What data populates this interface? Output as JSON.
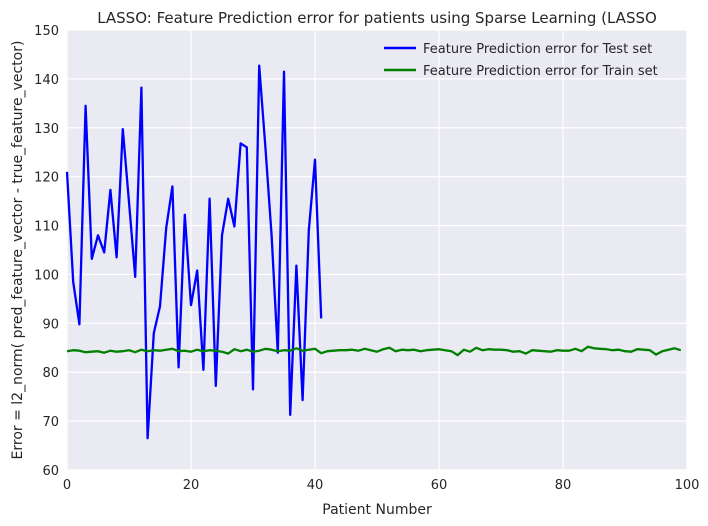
{
  "chart_data": {
    "type": "line",
    "title": "LASSO: Feature Prediction error for patients using Sparse Learning (LASSO",
    "xlabel": "Patient Number",
    "ylabel": "Error = l2_norm( pred_feature_vector - true_feature_vector)",
    "xlim": [
      0,
      100
    ],
    "ylim": [
      60,
      150
    ],
    "xticks": [
      0,
      20,
      40,
      60,
      80,
      100
    ],
    "yticks": [
      60,
      70,
      80,
      90,
      100,
      110,
      120,
      130,
      140,
      150
    ],
    "xtick_labels": [
      "0",
      "20",
      "40",
      "60",
      "80",
      "100"
    ],
    "ytick_labels": [
      "60",
      "70",
      "80",
      "90",
      "100",
      "110",
      "120",
      "130",
      "140",
      "150"
    ],
    "grid": true,
    "legend_position": "top-right",
    "series": [
      {
        "name": "Feature Prediction error for Test set",
        "color": "#0000ff",
        "x": [
          0,
          1,
          2,
          3,
          4,
          5,
          6,
          7,
          8,
          9,
          10,
          11,
          12,
          13,
          14,
          15,
          16,
          17,
          18,
          19,
          20,
          21,
          22,
          23,
          24,
          25,
          26,
          27,
          28,
          29,
          30,
          31,
          32,
          33,
          34,
          35,
          36,
          37,
          38,
          39,
          40,
          41
        ],
        "y": [
          121,
          98.5,
          89.8,
          134.5,
          103.2,
          108,
          104.5,
          117.3,
          103.5,
          129.7,
          114.8,
          99.5,
          138.2,
          66.5,
          88,
          93.5,
          109.5,
          118,
          81,
          112.2,
          93.7,
          100.8,
          80.5,
          115.5,
          77.2,
          108,
          115.5,
          109.8,
          126.8,
          126,
          76.5,
          142.7,
          126,
          108,
          84,
          141.5,
          71.3,
          101.8,
          74.3,
          109,
          123.5,
          91
        ]
      },
      {
        "name": "Feature Prediction error for Train set",
        "color": "#008000",
        "x": [
          0,
          1,
          2,
          3,
          4,
          5,
          6,
          7,
          8,
          9,
          10,
          11,
          12,
          13,
          14,
          15,
          16,
          17,
          18,
          19,
          20,
          21,
          22,
          23,
          24,
          25,
          26,
          27,
          28,
          29,
          30,
          31,
          32,
          33,
          34,
          35,
          36,
          37,
          38,
          39,
          40,
          41,
          42,
          43,
          44,
          45,
          46,
          47,
          48,
          49,
          50,
          51,
          52,
          53,
          54,
          55,
          56,
          57,
          58,
          59,
          60,
          61,
          62,
          63,
          64,
          65,
          66,
          67,
          68,
          69,
          70,
          71,
          72,
          73,
          74,
          75,
          76,
          77,
          78,
          79,
          80,
          81,
          82,
          83,
          84,
          85,
          86,
          87,
          88,
          89,
          90,
          91,
          92,
          93,
          94,
          95,
          96,
          97,
          98,
          99
        ],
        "y": [
          84.3,
          84.5,
          84.4,
          84.1,
          84.2,
          84.3,
          84.0,
          84.4,
          84.2,
          84.3,
          84.5,
          84.1,
          84.6,
          84.3,
          84.5,
          84.4,
          84.6,
          84.8,
          84.3,
          84.4,
          84.2,
          84.6,
          84.3,
          84.5,
          84.4,
          84.2,
          83.8,
          84.7,
          84.3,
          84.6,
          84.2,
          84.4,
          84.8,
          84.6,
          84.3,
          84.5,
          84.4,
          84.9,
          84.4,
          84.6,
          84.8,
          83.9,
          84.3,
          84.4,
          84.5,
          84.5,
          84.6,
          84.4,
          84.8,
          84.5,
          84.2,
          84.7,
          85.0,
          84.3,
          84.6,
          84.5,
          84.6,
          84.3,
          84.5,
          84.6,
          84.7,
          84.5,
          84.3,
          83.5,
          84.6,
          84.2,
          85.0,
          84.5,
          84.7,
          84.6,
          84.6,
          84.5,
          84.2,
          84.3,
          83.8,
          84.5,
          84.4,
          84.3,
          84.2,
          84.5,
          84.4,
          84.4,
          84.8,
          84.3,
          85.2,
          84.9,
          84.8,
          84.7,
          84.5,
          84.6,
          84.3,
          84.2,
          84.7,
          84.6,
          84.5,
          83.6,
          84.3,
          84.6,
          84.9,
          84.5
        ]
      }
    ]
  }
}
